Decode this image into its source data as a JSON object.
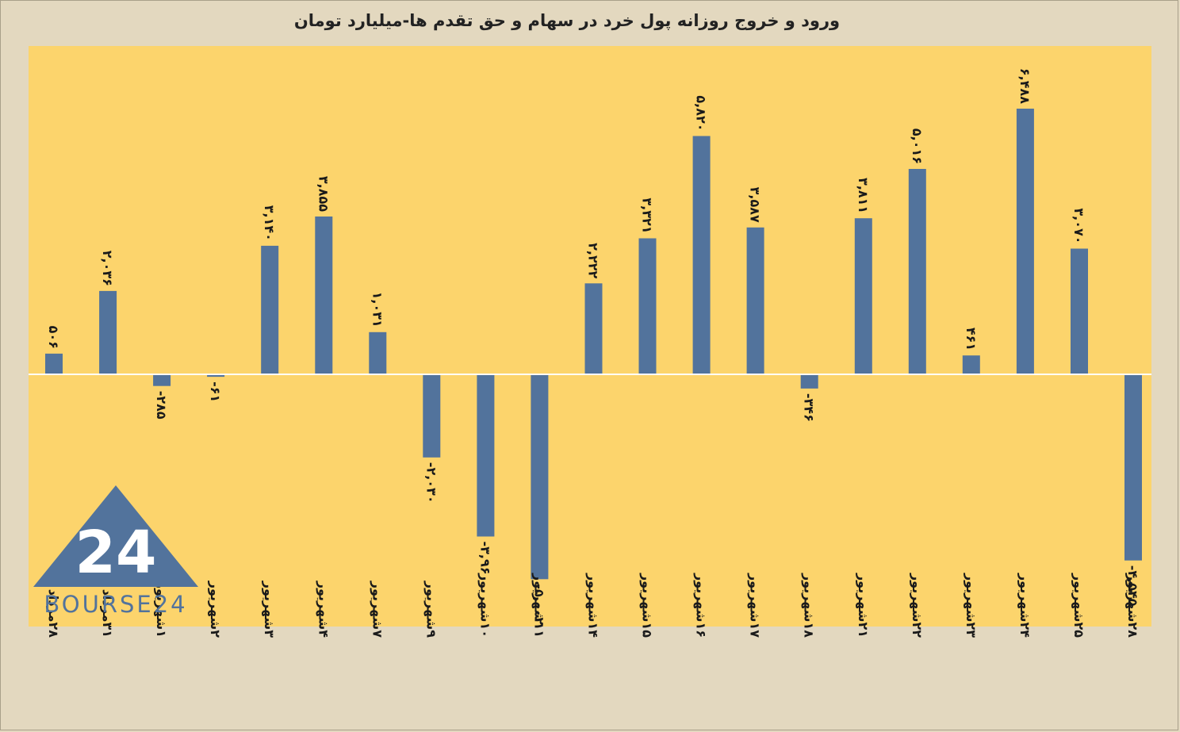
{
  "title": "ورود و خروج روزانه پول خرد در سهام و حق تقدم ها-میلیارد تومان",
  "logo_text": "BOURSE24",
  "logo_mark": "24",
  "colors": {
    "background": "#e3d8bf",
    "plot_area": "#fcd46c",
    "bar": "#52739c",
    "zero_line": "#ffffff",
    "logo": "#52739c"
  },
  "chart_data": {
    "type": "bar",
    "title": "ورود و خروج روزانه پول خرد در سهام و حق تقدم ها-میلیارد تومان",
    "xlabel": "",
    "ylabel": "",
    "ylim": [
      -5300,
      7400
    ],
    "grid": false,
    "legend": "none",
    "categories": [
      "۲۸مرداد",
      "۳۱مرداد",
      "۱شهریور",
      "۲شهریور",
      "۳شهریور",
      "۴شهریور",
      "۷شهریور",
      "۹شهریور",
      "۱۰شهریور",
      "۱۱شهریور",
      "۱۴شهریور",
      "۱۵شهریور",
      "۱۶شهریور",
      "۱۷شهریور",
      "۱۸شهریور",
      "۲۱شهریور",
      "۲۲شهریور",
      "۲۳شهریور",
      "۲۴شهریور",
      "۲۵شهریور",
      "۲۸شهریور"
    ],
    "values": [
      506,
      2036,
      -285,
      -61,
      3140,
      3855,
      1031,
      -2030,
      -3960,
      -5002,
      2222,
      3321,
      5820,
      3587,
      -346,
      3811,
      5016,
      461,
      6488,
      3070,
      -4545
    ],
    "data_labels": [
      "۵۰۶",
      "۲,۰۳۶",
      "-۲۸۵",
      "-۶۱",
      "۳,۱۴۰",
      "۳,۸۵۵",
      "۱,۰۳۱",
      "-۲,۰۳۰",
      "-۳,۹۶۰",
      "-۵,۰۰۲",
      "۲,۲۲۲",
      "۳,۳۲۱",
      "۵,۸۲۰",
      "۳,۵۸۷",
      "-۳۴۶",
      "۳,۸۱۱",
      "۵,۰۱۶",
      "۴۶۱",
      "۶,۴۸۸",
      "۳,۰۷۰",
      "-۴,۵۴۵"
    ]
  }
}
